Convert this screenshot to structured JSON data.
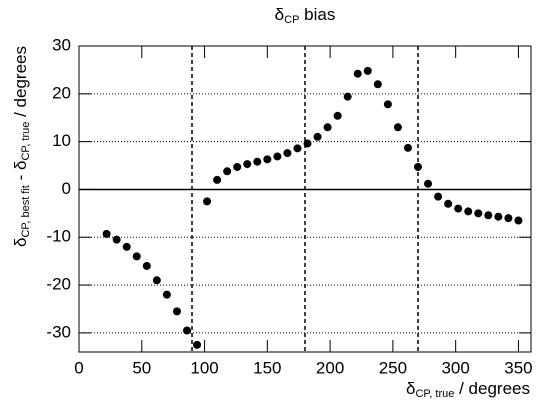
{
  "chart_data": {
    "type": "scatter",
    "title": [
      "δ",
      "CP",
      " bias"
    ],
    "xlabel": [
      "δ",
      "CP, true",
      " / degrees"
    ],
    "ylabel": [
      "δ",
      "CP, best fit",
      " - δ",
      "CP, true",
      " / degrees"
    ],
    "x": [
      22,
      30,
      38,
      46,
      54,
      62,
      70,
      78,
      86,
      94,
      102,
      110,
      118,
      126,
      134,
      142,
      150,
      158,
      166,
      174,
      182,
      190,
      198,
      206,
      214,
      222,
      230,
      238,
      246,
      254,
      262,
      270,
      278,
      286,
      294,
      302,
      310,
      318,
      326,
      334,
      342,
      350
    ],
    "series": [
      {
        "color": "#000000",
        "values": [
          -9.3,
          -10.5,
          -12,
          -14,
          -16,
          -19,
          -22,
          -25.5,
          -29.5,
          -32.5,
          -2.5,
          2,
          3.8,
          4.7,
          5.3,
          5.8,
          6.3,
          6.9,
          7.6,
          8.6,
          9.6,
          11,
          13,
          15.4,
          19.4,
          24.2,
          24.8,
          22,
          17.8,
          13,
          8.7,
          4.7,
          1.2,
          -1.5,
          -3,
          -4,
          -4.6,
          -5,
          -5.4,
          -5.7,
          -6,
          -6.5
        ]
      }
    ],
    "xlim": [
      0,
      360
    ],
    "xticks": [
      0,
      50,
      100,
      150,
      200,
      250,
      300,
      350
    ],
    "ylim": [
      -34,
      30
    ],
    "yticks": [
      -30,
      -20,
      -10,
      0,
      10,
      20,
      30
    ],
    "grid": true,
    "hline": 0,
    "vlines": [
      90,
      180,
      270
    ]
  }
}
